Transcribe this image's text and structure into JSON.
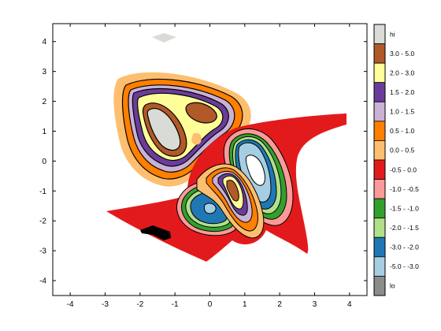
{
  "chart_data": {
    "type": "filled-contour",
    "xlim": [
      -4.5,
      4.5
    ],
    "ylim": [
      -4.5,
      4.6
    ],
    "x_ticks": [
      "-4",
      "-3",
      "-2",
      "-1",
      "0",
      "1",
      "2",
      "3",
      "4"
    ],
    "y_ticks": [
      "4",
      "3",
      "2",
      "1",
      "0",
      "-1",
      "-2",
      "-3",
      "-4"
    ],
    "colorbar": [
      {
        "label": "hi",
        "color": "#d9dcd6"
      },
      {
        "label": "3.0 - 5.0",
        "color": "#b15928"
      },
      {
        "label": "2.0 - 3.0",
        "color": "#ffff99"
      },
      {
        "label": "1.5 - 2.0",
        "color": "#6a3d9a"
      },
      {
        "label": "1.0 - 1.5",
        "color": "#cab2d6"
      },
      {
        "label": "0.5 - 1.0",
        "color": "#ff7f00"
      },
      {
        "label": "0.0 - 0.5",
        "color": "#fdbf6f"
      },
      {
        "label": "-0.5 - 0.0",
        "color": "#e31a1c"
      },
      {
        "label": "-1.0 - -0.5",
        "color": "#fb9a99"
      },
      {
        "label": "-1.5 - -1.0",
        "color": "#33a02c"
      },
      {
        "label": "-2.0 - -1.5",
        "color": "#b2df8a"
      },
      {
        "label": "-3.0 - -2.0",
        "color": "#1f78b4"
      },
      {
        "label": "-5.0 - -3.0",
        "color": "#a6cee3"
      },
      {
        "label": "lo",
        "color": "#8c8c8c"
      }
    ],
    "hi_patch_center": [
      -1.35,
      3.5
    ],
    "lo_patch_center": [
      -1.6,
      -2.15
    ]
  }
}
